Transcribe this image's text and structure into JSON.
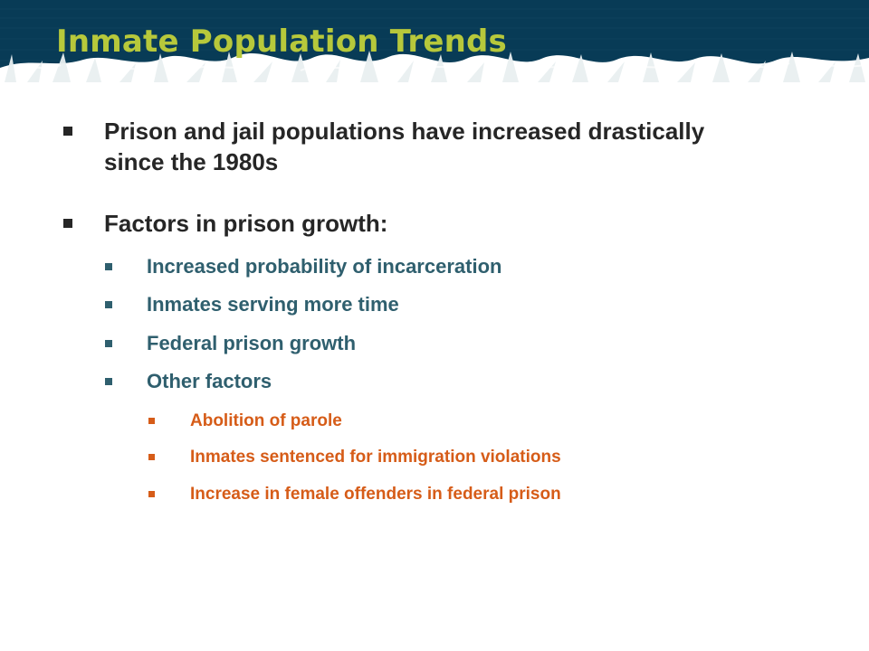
{
  "slide": {
    "title": "Inmate Population Trends",
    "colors": {
      "header_background": "#083b56",
      "header_texture": "#e9f0f1",
      "title": "#b7c83b",
      "level_1_text": "#262626",
      "level_2_text": "#2f5f6e",
      "level_3_text": "#d65c18"
    },
    "bullets": {
      "level_1": [
        {
          "text": "Prison and jail populations have increased drastically since the 1980s",
          "marker": "square-bullet"
        },
        {
          "text": "Factors in prison growth:",
          "marker": "square-bullet"
        }
      ],
      "level_2": [
        {
          "text": "Increased probability of incarceration",
          "marker": "square-bullet"
        },
        {
          "text": "Inmates serving more time",
          "marker": "square-bullet"
        },
        {
          "text": "Federal prison growth",
          "marker": "square-bullet"
        },
        {
          "text": "Other factors",
          "marker": "square-bullet"
        }
      ],
      "level_3": [
        {
          "text": "Abolition of parole",
          "marker": "square-bullet"
        },
        {
          "text": "Inmates sentenced for immigration violations",
          "marker": "square-bullet"
        },
        {
          "text": "Increase in female offenders in federal prison",
          "marker": "square-bullet"
        }
      ]
    }
  }
}
